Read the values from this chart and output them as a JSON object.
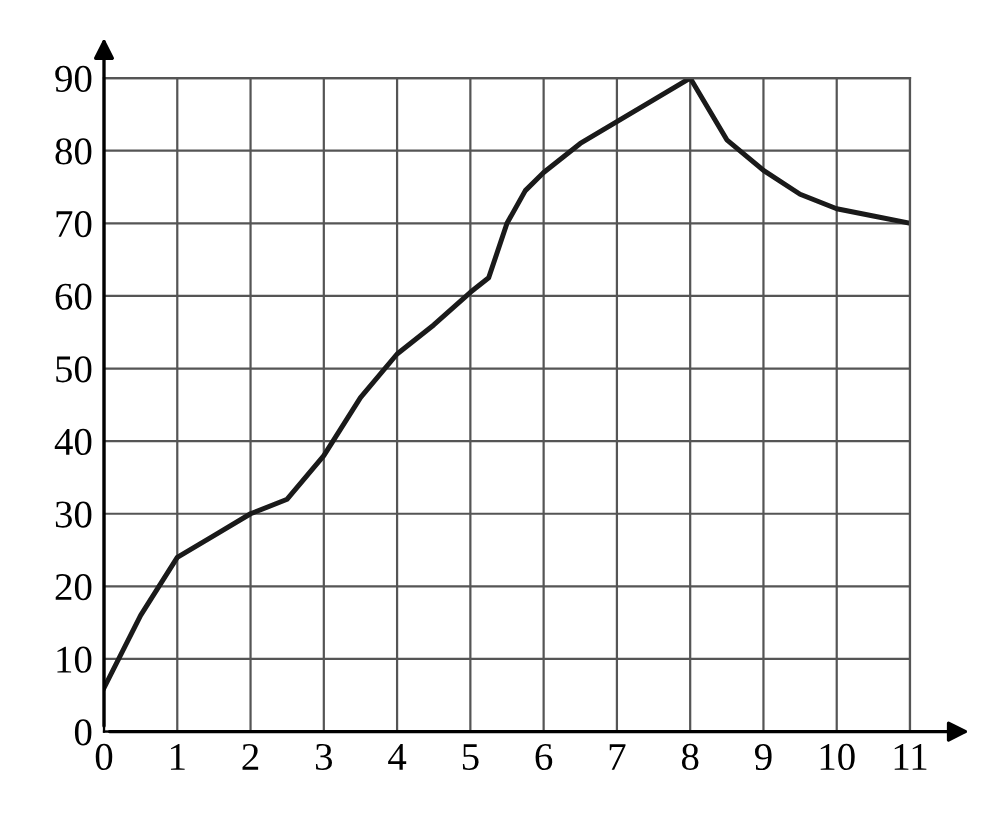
{
  "chart_data": {
    "type": "line",
    "x": [
      0,
      0.5,
      1,
      1.5,
      2,
      2.5,
      3,
      3.5,
      4,
      4.5,
      5,
      5.25,
      5.5,
      5.75,
      6,
      6.5,
      7,
      7.5,
      8,
      8.5,
      9,
      9.5,
      10,
      10.5,
      11
    ],
    "series": [
      {
        "color": "#1a1a1a",
        "values": [
          6,
          16,
          24,
          27,
          30,
          32,
          38,
          46,
          52,
          56,
          60.5,
          62.5,
          70,
          74.5,
          77,
          81,
          84,
          87,
          90,
          81.5,
          77.3,
          74,
          72,
          71,
          70
        ]
      }
    ],
    "xlim": [
      0,
      11
    ],
    "ylim": [
      0,
      90
    ],
    "xticks": [
      0,
      1,
      2,
      3,
      4,
      5,
      6,
      7,
      8,
      9,
      10,
      11
    ],
    "yticks": [
      0,
      10,
      20,
      30,
      40,
      50,
      60,
      70,
      80,
      90
    ],
    "grid": true,
    "marker": "none",
    "line_style": "solid"
  }
}
